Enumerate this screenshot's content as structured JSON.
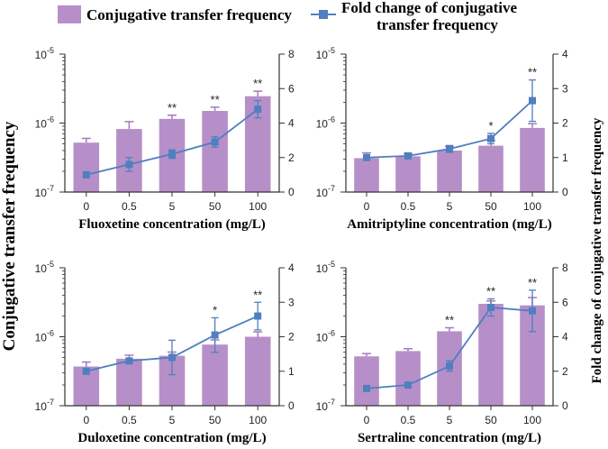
{
  "legend": {
    "bar_label": "Conjugative transfer frequency",
    "line_label_1": "Fold change of conjugative",
    "line_label_2": "transfer frequency"
  },
  "y_left_title": "Conjugative transfer frequency",
  "y_right_title": "Fold change of conjugative transfer frequency",
  "colors": {
    "bar": "#b68fc8",
    "bar_err": "#a678bd",
    "line": "#4f7fbf",
    "axis": "#333333"
  },
  "chart_data": [
    {
      "type": "bar+line",
      "xlabel": "Fluoxetine concentration (mg/L)",
      "categories": [
        "0",
        "0.5",
        "5",
        "50",
        "100"
      ],
      "left_axis": {
        "scale": "log",
        "range": [
          1e-07,
          1e-05
        ],
        "ticks": [
          {
            "v": 1e-07,
            "base": "10",
            "exp": "-7"
          },
          {
            "v": 1e-06,
            "base": "10",
            "exp": "-6"
          },
          {
            "v": 1e-05,
            "base": "10",
            "exp": "-5"
          }
        ]
      },
      "right_axis": {
        "range": [
          0,
          8
        ],
        "ticks": [
          "0",
          "2",
          "4",
          "6",
          "8"
        ]
      },
      "bar_values": [
        5.2e-07,
        8.2e-07,
        1.15e-06,
        1.5e-06,
        2.45e-06
      ],
      "bar_err_hi": [
        6e-07,
        1.05e-06,
        1.3e-06,
        1.7e-06,
        2.9e-06
      ],
      "fold_values": [
        1.0,
        1.6,
        2.2,
        2.9,
        4.8
      ],
      "fold_err": [
        0.1,
        0.4,
        0.25,
        0.3,
        0.5
      ],
      "significance": [
        "",
        "",
        "**",
        "**",
        "**"
      ]
    },
    {
      "type": "bar+line",
      "xlabel": "Amitriptyline concentration (mg/L)",
      "categories": [
        "0",
        "0.5",
        "5",
        "50",
        "100"
      ],
      "left_axis": {
        "scale": "log",
        "range": [
          1e-07,
          1e-05
        ],
        "ticks": [
          {
            "v": 1e-07,
            "base": "10",
            "exp": "-7"
          },
          {
            "v": 1e-06,
            "base": "10",
            "exp": "-6"
          },
          {
            "v": 1e-05,
            "base": "10",
            "exp": "-5"
          }
        ]
      },
      "right_axis": {
        "range": [
          0,
          4
        ],
        "ticks": [
          "0",
          "1",
          "2",
          "3",
          "4"
        ]
      },
      "bar_values": [
        3.1e-07,
        3.3e-07,
        4e-07,
        4.7e-07,
        8.5e-07
      ],
      "bar_err_hi": [
        3.7e-07,
        3.6e-07,
        4.6e-07,
        5.6e-07,
        9.8e-07
      ],
      "fold_values": [
        1.0,
        1.05,
        1.25,
        1.55,
        2.65
      ],
      "fold_err": [
        0.08,
        0.08,
        0.1,
        0.15,
        0.6
      ],
      "significance": [
        "",
        "",
        "",
        "*",
        "**"
      ]
    },
    {
      "type": "bar+line",
      "xlabel": "Duloxetine concentration (mg/L)",
      "categories": [
        "0",
        "0.5",
        "5",
        "50",
        "100"
      ],
      "left_axis": {
        "scale": "log",
        "range": [
          1e-07,
          1e-05
        ],
        "ticks": [
          {
            "v": 1e-07,
            "base": "10",
            "exp": "-7"
          },
          {
            "v": 1e-06,
            "base": "10",
            "exp": "-6"
          },
          {
            "v": 1e-05,
            "base": "10",
            "exp": "-5"
          }
        ]
      },
      "right_axis": {
        "range": [
          0,
          4
        ],
        "ticks": [
          "0",
          "1",
          "2",
          "3",
          "4"
        ]
      },
      "bar_values": [
        3.7e-07,
        4.8e-07,
        5.3e-07,
        7.7e-07,
        1e-06
      ],
      "bar_err_hi": [
        4.3e-07,
        5.4e-07,
        6e-07,
        9e-07,
        1.18e-06
      ],
      "fold_values": [
        1.0,
        1.3,
        1.4,
        2.05,
        2.6
      ],
      "fold_err": [
        0.08,
        0.08,
        0.5,
        0.5,
        0.4
      ],
      "significance": [
        "",
        "",
        "",
        "*",
        "**"
      ]
    },
    {
      "type": "bar+line",
      "xlabel": "Sertraline concentration (mg/L)",
      "categories": [
        "0",
        "0.5",
        "5",
        "50",
        "100"
      ],
      "left_axis": {
        "scale": "log",
        "range": [
          1e-07,
          1e-05
        ],
        "ticks": [
          {
            "v": 1e-07,
            "base": "10",
            "exp": "-7"
          },
          {
            "v": 1e-06,
            "base": "10",
            "exp": "-6"
          },
          {
            "v": 1e-05,
            "base": "10",
            "exp": "-5"
          }
        ]
      },
      "right_axis": {
        "range": [
          0,
          8
        ],
        "ticks": [
          "0",
          "2",
          "4",
          "6",
          "8"
        ]
      },
      "bar_values": [
        5.2e-07,
        6.2e-07,
        1.2e-06,
        3e-06,
        2.85e-06
      ],
      "bar_err_hi": [
        5.7e-07,
        6.7e-07,
        1.35e-06,
        3.3e-06,
        3.7e-06
      ],
      "fold_values": [
        1.0,
        1.2,
        2.3,
        5.7,
        5.5
      ],
      "fold_err": [
        0.1,
        0.1,
        0.3,
        0.5,
        1.2
      ],
      "significance": [
        "",
        "",
        "**",
        "**",
        "**"
      ]
    }
  ]
}
